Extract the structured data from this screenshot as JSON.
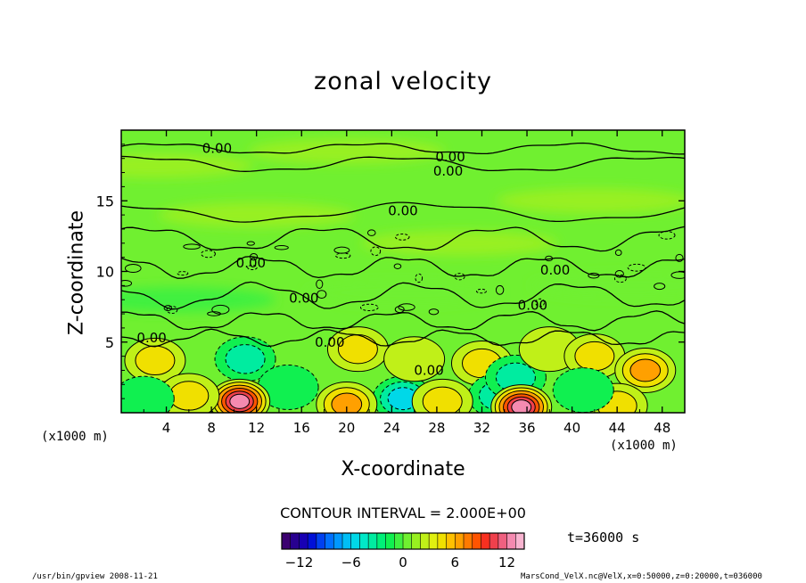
{
  "chart_data": {
    "type": "heatmap",
    "title": "zonal velocity",
    "xlabel": "X-coordinate",
    "ylabel": "Z-coordinate",
    "x_unit_label": "(x1000 m)",
    "xlim": [
      0,
      50
    ],
    "ylim": [
      0,
      20
    ],
    "x_ticks": [
      4,
      8,
      12,
      16,
      20,
      24,
      28,
      32,
      36,
      40,
      44,
      48
    ],
    "y_ticks": [
      5,
      10,
      15
    ],
    "contour_interval_text": "CONTOUR INTERVAL = 2.000E+00",
    "contour_labels": [
      {
        "text": "0.00",
        "x": 8.5,
        "z": 18.7
      },
      {
        "text": "0.00",
        "x": 29.2,
        "z": 18.1
      },
      {
        "text": "0.00",
        "x": 29.0,
        "z": 17.1
      },
      {
        "text": "0.00",
        "x": 25.0,
        "z": 14.3
      },
      {
        "text": "0.00",
        "x": 11.5,
        "z": 10.6
      },
      {
        "text": "0.00",
        "x": 38.5,
        "z": 10.1
      },
      {
        "text": "0.00",
        "x": 16.2,
        "z": 8.1
      },
      {
        "text": "0.00",
        "x": 36.5,
        "z": 7.6
      },
      {
        "text": "0.00",
        "x": 2.7,
        "z": 5.3
      },
      {
        "text": "0.00",
        "x": 18.5,
        "z": 5.0
      },
      {
        "text": "0.00",
        "x": 27.3,
        "z": 3.0
      }
    ],
    "features": [
      {
        "x": 3.0,
        "z": 3.7,
        "value": 4
      },
      {
        "x": 11.0,
        "z": 3.8,
        "value": -4
      },
      {
        "x": 14.8,
        "z": 1.8,
        "value": -2
      },
      {
        "x": 21.0,
        "z": 4.5,
        "value": 4
      },
      {
        "x": 25.0,
        "z": 1.0,
        "value": -6
      },
      {
        "x": 26.0,
        "z": 3.8,
        "value": 2
      },
      {
        "x": 32.0,
        "z": 3.5,
        "value": 4
      },
      {
        "x": 33.5,
        "z": 1.2,
        "value": -4
      },
      {
        "x": 35.0,
        "z": 2.5,
        "value": -4
      },
      {
        "x": 38.0,
        "z": 4.5,
        "value": 2
      },
      {
        "x": 42.0,
        "z": 4.0,
        "value": 4
      },
      {
        "x": 46.5,
        "z": 3.0,
        "value": 6
      },
      {
        "x": 10.5,
        "z": 0.8,
        "value": 12
      },
      {
        "x": 20.0,
        "z": 0.6,
        "value": 6
      },
      {
        "x": 35.5,
        "z": 0.4,
        "value": 12
      },
      {
        "x": 44.0,
        "z": 0.5,
        "value": 4
      },
      {
        "x": 6.0,
        "z": 1.2,
        "value": 4
      },
      {
        "x": 28.5,
        "z": 0.8,
        "value": 4
      },
      {
        "x": 41.0,
        "z": 1.6,
        "value": -2
      },
      {
        "x": 2.0,
        "z": 1.0,
        "value": -2
      }
    ],
    "colorbar": {
      "ticks": [
        -12,
        -6,
        0,
        6,
        12
      ],
      "range": [
        -14,
        14
      ],
      "colors": [
        "#3b0070",
        "#280090",
        "#1800b4",
        "#0010d8",
        "#0040f0",
        "#0070ff",
        "#0098ff",
        "#00bef6",
        "#00d8e8",
        "#00e8c8",
        "#00eca0",
        "#00f078",
        "#10f050",
        "#40f040",
        "#70f030",
        "#98f020",
        "#c0f018",
        "#e0f010",
        "#f0e000",
        "#ffc000",
        "#ffa000",
        "#ff7a00",
        "#ff5400",
        "#f83020",
        "#f0404c",
        "#f06080",
        "#f48ab0",
        "#f8b4d0"
      ]
    },
    "time_label": "t=36000 s"
  },
  "footer": {
    "left": "/usr/bin/gpview  2008-11-21",
    "right": "MarsCond_VelX.nc@VelX,x=0:50000,z=0:20000,t=036000"
  }
}
